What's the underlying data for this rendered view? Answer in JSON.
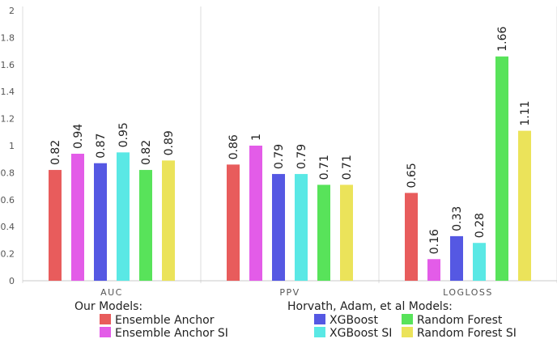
{
  "chart_data": {
    "type": "bar",
    "categories": [
      "AUC",
      "PPV",
      "LOGLOSS"
    ],
    "ylim": [
      0,
      2
    ],
    "yticks": [
      0,
      0.2,
      0.4,
      0.6,
      0.8,
      1,
      1.2,
      1.4,
      1.6,
      1.8,
      2
    ],
    "grid": false,
    "series": [
      {
        "name": "Ensemble Anchor",
        "color": "#e85c5c",
        "values": [
          0.82,
          0.86,
          0.65
        ],
        "labels": [
          "0.82",
          "0.86",
          "0.65"
        ]
      },
      {
        "name": "Ensemble Anchor SI",
        "color": "#e35ce8",
        "values": [
          0.94,
          1,
          0.16
        ],
        "labels": [
          "0.94",
          "1",
          "0.16"
        ]
      },
      {
        "name": "XGBoost",
        "color": "#5558e3",
        "values": [
          0.87,
          0.79,
          0.33
        ],
        "labels": [
          "0.87",
          "0.79",
          "0.33"
        ]
      },
      {
        "name": "XGBoost SI",
        "color": "#5ae8e5",
        "values": [
          0.95,
          0.79,
          0.28
        ],
        "labels": [
          "0.95",
          "0.79",
          "0.28"
        ]
      },
      {
        "name": "Random Forest",
        "color": "#58e35a",
        "values": [
          0.82,
          0.71,
          1.66
        ],
        "labels": [
          "0.82",
          "0.71",
          "1.66"
        ]
      },
      {
        "name": "Random Forest SI",
        "color": "#ebe35a",
        "values": [
          0.89,
          0.71,
          1.11
        ],
        "labels": [
          "0.89",
          "0.71",
          "1.11"
        ]
      }
    ],
    "legend": {
      "placement": "bottom",
      "groups": [
        {
          "title": "Our Models:",
          "items": [
            "Ensemble Anchor",
            "Ensemble Anchor SI"
          ]
        },
        {
          "title": "Horvath, Adam, et al Models:",
          "items": [
            "XGBoost",
            "XGBoost SI",
            "Random Forest",
            "Random Forest SI"
          ]
        }
      ]
    }
  }
}
